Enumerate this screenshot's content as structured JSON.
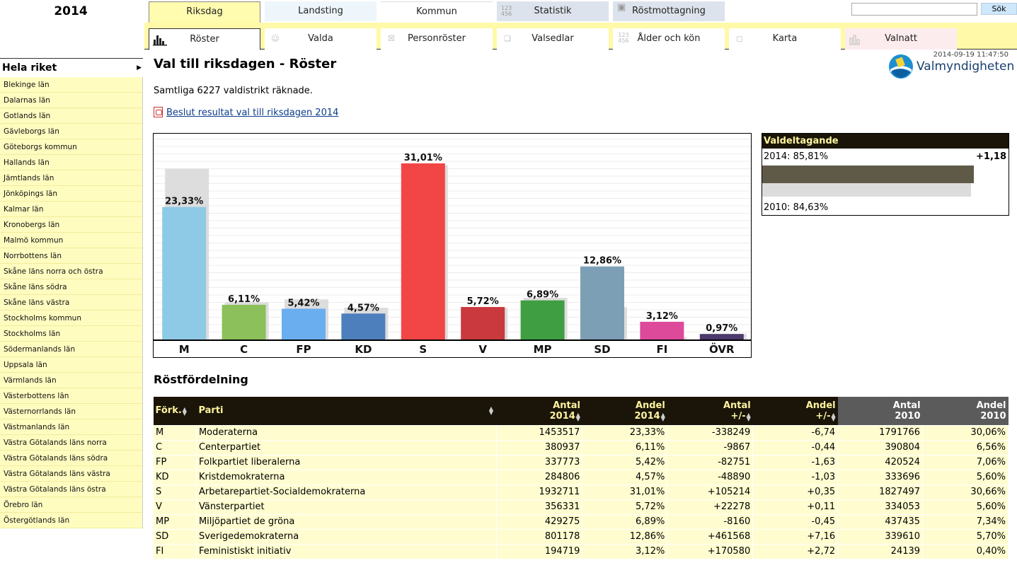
{
  "year": "2014",
  "tabs_top": [
    {
      "label": "Riksdag"
    },
    {
      "label": "Landsting"
    },
    {
      "label": "Kommun"
    },
    {
      "label": "Statistik"
    },
    {
      "label": "Röstmottagning"
    }
  ],
  "tabs_sub": [
    {
      "label": "Röster"
    },
    {
      "label": "Valda"
    },
    {
      "label": "Personröster"
    },
    {
      "label": "Valsedlar"
    },
    {
      "label": "Ålder och kön"
    },
    {
      "label": "Karta"
    },
    {
      "label": "Valnatt"
    }
  ],
  "search": {
    "value": "",
    "button": "Sök"
  },
  "sidebar": {
    "header": "Hela riket",
    "items": [
      "Blekinge län",
      "Dalarnas län",
      "Gotlands län",
      "Gävleborgs län",
      "Göteborgs kommun",
      "Hallands län",
      "Jämtlands län",
      "Jönköpings län",
      "Kalmar län",
      "Kronobergs län",
      "Malmö kommun",
      "Norrbottens län",
      "Skåne läns norra och östra",
      "Skåne läns södra",
      "Skåne läns västra",
      "Stockholms kommun",
      "Stockholms län",
      "Södermanlands län",
      "Uppsala län",
      "Värmlands län",
      "Västerbottens län",
      "Västernorrlands län",
      "Västmanlands län",
      "Västra Götalands läns norra",
      "Västra Götalands läns södra",
      "Västra Götalands läns västra",
      "Västra Götalands läns östra",
      "Örebro län",
      "Östergötlands län"
    ]
  },
  "main": {
    "title": "Val till riksdagen - Röster",
    "timestamp": "2014-09-19 11:47:50",
    "logo_text": "Valmyndigheten",
    "counted_text": "Samtliga 6227 valdistrikt räknade.",
    "pdf_link": "Beslut resultat val till riksdagen 2014"
  },
  "chart_data": {
    "type": "bar",
    "categories": [
      "M",
      "C",
      "FP",
      "KD",
      "S",
      "V",
      "MP",
      "SD",
      "FI",
      "ÖVR"
    ],
    "series": [
      {
        "values": [
          23.33,
          6.11,
          5.42,
          4.57,
          31.01,
          5.72,
          6.89,
          12.86,
          3.12,
          0.97
        ]
      },
      {
        "values": [
          30.06,
          6.56,
          7.06,
          5.6,
          30.66,
          5.6,
          7.34,
          5.7,
          0.4,
          1.02
        ]
      }
    ],
    "labels": [
      "23,33%",
      "6,11%",
      "5,42%",
      "4,57%",
      "31,01%",
      "5,72%",
      "6,89%",
      "12,86%",
      "3,12%",
      "0,97%"
    ],
    "colors": [
      "#8ecae6",
      "#8cc05a",
      "#6aaef0",
      "#4e7fbd",
      "#f24646",
      "#c9393d",
      "#3f9e41",
      "#7d9fb6",
      "#de4a9a",
      "#4b3a6b"
    ],
    "color_2010": "#dddddd",
    "ylim": [
      0,
      32
    ],
    "grid": true
  },
  "turnout": {
    "title": "Valdeltagande",
    "year2014": "2014: 85,81%",
    "change": "+1,18",
    "year2010": "2010: 84,63%",
    "value2014": 85.81,
    "value2010": 84.63
  },
  "table": {
    "title": "Röstfördelning",
    "headers": {
      "abbr": "Förk.",
      "party": "Parti",
      "votes2014": [
        "Antal",
        "2014"
      ],
      "share2014": [
        "Andel",
        "2014"
      ],
      "votes_diff": [
        "Antal",
        "+/-"
      ],
      "share_diff": [
        "Andel",
        "+/-"
      ],
      "votes2010": [
        "Antal",
        "2010"
      ],
      "share2010": [
        "Andel",
        "2010"
      ]
    },
    "rows": [
      [
        "M",
        "Moderaterna",
        "1453517",
        "23,33%",
        "-338249",
        "-6,74",
        "1791766",
        "30,06%"
      ],
      [
        "C",
        "Centerpartiet",
        "380937",
        "6,11%",
        "-9867",
        "-0,44",
        "390804",
        "6,56%"
      ],
      [
        "FP",
        "Folkpartiet liberalerna",
        "337773",
        "5,42%",
        "-82751",
        "-1,63",
        "420524",
        "7,06%"
      ],
      [
        "KD",
        "Kristdemokraterna",
        "284806",
        "4,57%",
        "-48890",
        "-1,03",
        "333696",
        "5,60%"
      ],
      [
        "S",
        "Arbetarepartiet-Socialdemokraterna",
        "1932711",
        "31,01%",
        "+105214",
        "+0,35",
        "1827497",
        "30,66%"
      ],
      [
        "V",
        "Vänsterpartiet",
        "356331",
        "5,72%",
        "+22278",
        "+0,11",
        "334053",
        "5,60%"
      ],
      [
        "MP",
        "Miljöpartiet de gröna",
        "429275",
        "6,89%",
        "-8160",
        "-0,45",
        "437435",
        "7,34%"
      ],
      [
        "SD",
        "Sverigedemokraterna",
        "801178",
        "12,86%",
        "+461568",
        "+7,16",
        "339610",
        "5,70%"
      ],
      [
        "FI",
        "Feministiskt initiativ",
        "194719",
        "3,12%",
        "+170580",
        "+2,72",
        "24139",
        "0,40%"
      ]
    ]
  }
}
